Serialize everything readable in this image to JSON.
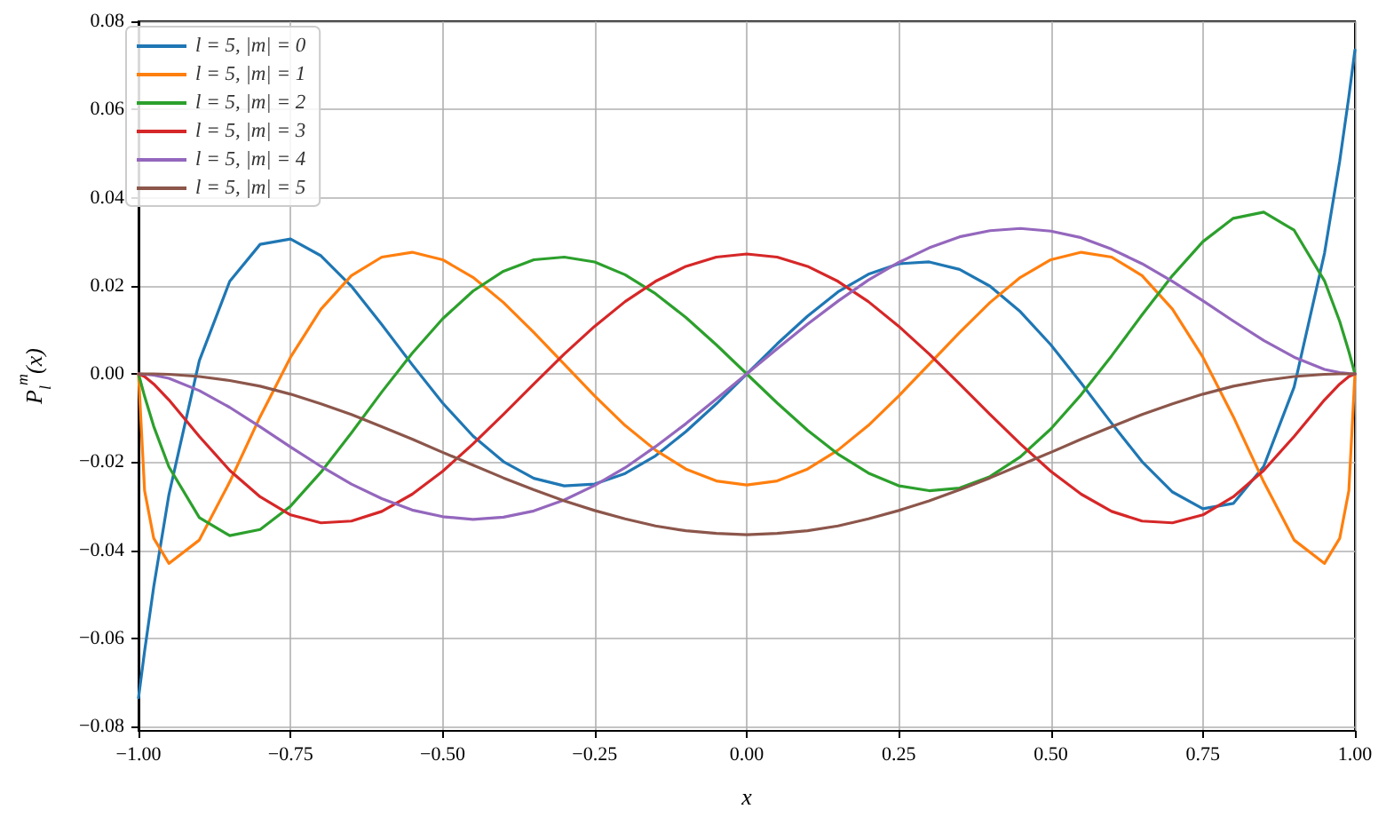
{
  "chart_data": {
    "type": "line",
    "xlabel": "x",
    "ylabel": "P$_{l}$$^{m}$(x)",
    "x": [
      -1,
      -0.99,
      -0.975,
      -0.95,
      -0.9,
      -0.85,
      -0.8,
      -0.75,
      -0.7,
      -0.65,
      -0.6,
      -0.55,
      -0.5,
      -0.45,
      -0.4,
      -0.35,
      -0.3,
      -0.25,
      -0.2,
      -0.15,
      -0.1,
      -0.05,
      0,
      0.05,
      0.1,
      0.15,
      0.2,
      0.25,
      0.3,
      0.35,
      0.4,
      0.45,
      0.5,
      0.55,
      0.6,
      0.65,
      0.7,
      0.75,
      0.8,
      0.85,
      0.9,
      0.95,
      0.975,
      0.99,
      1
    ],
    "series": [
      {
        "name": "l = 5, |m| = 0",
        "color": "#1f77b4",
        "values": [
          -0.0735,
          -0.0629,
          -0.0483,
          -0.0274,
          0.003,
          0.021,
          0.0294,
          0.0306,
          0.0268,
          0.0199,
          0.0112,
          0.0021,
          -0.0066,
          -0.0141,
          -0.0199,
          -0.0237,
          -0.0254,
          -0.025,
          -0.0226,
          -0.0186,
          -0.0131,
          -0.0068,
          0,
          0.0068,
          0.0131,
          0.0186,
          0.0226,
          0.025,
          0.0254,
          0.0237,
          0.0199,
          0.0141,
          0.0066,
          -0.0021,
          -0.0112,
          -0.0199,
          -0.0268,
          -0.0306,
          -0.0294,
          -0.021,
          -0.003,
          0.0274,
          0.0483,
          0.0629,
          0.0735
        ]
      },
      {
        "name": "l = 5, |m| = 1",
        "color": "#ff7f0e",
        "values": [
          0,
          -0.0265,
          -0.0373,
          -0.043,
          -0.0377,
          -0.0245,
          -0.0097,
          0.0038,
          0.0147,
          0.0223,
          0.0265,
          0.0276,
          0.0259,
          0.0219,
          0.0162,
          0.0094,
          0.0022,
          -0.005,
          -0.0117,
          -0.0173,
          -0.0216,
          -0.0243,
          -0.0252,
          -0.0243,
          -0.0216,
          -0.0173,
          -0.0117,
          -0.005,
          0.0022,
          0.0094,
          0.0162,
          0.0219,
          0.0259,
          0.0276,
          0.0265,
          0.0223,
          0.0147,
          0.0038,
          -0.0097,
          -0.0245,
          -0.0377,
          -0.043,
          -0.0373,
          -0.0265,
          0
        ]
      },
      {
        "name": "l = 5, |m| = 2",
        "color": "#2ca02c",
        "values": [
          0,
          -0.0051,
          -0.0119,
          -0.0211,
          -0.0326,
          -0.0367,
          -0.0353,
          -0.03,
          -0.0223,
          -0.0134,
          -0.0041,
          0.0047,
          0.0125,
          0.0188,
          0.0233,
          0.0259,
          0.0265,
          0.0254,
          0.0225,
          0.0182,
          0.0128,
          0.0066,
          0,
          -0.0066,
          -0.0128,
          -0.0182,
          -0.0225,
          -0.0254,
          -0.0265,
          -0.0259,
          -0.0233,
          -0.0188,
          -0.0125,
          -0.0047,
          0.0041,
          0.0134,
          0.0223,
          0.03,
          0.0353,
          0.0367,
          0.0326,
          0.0211,
          0.0119,
          0.0051,
          0
        ]
      },
      {
        "name": "l = 5, |m| = 3",
        "color": "#d62728",
        "values": [
          0,
          -0.0006,
          -0.0023,
          -0.0059,
          -0.0142,
          -0.0219,
          -0.0279,
          -0.032,
          -0.0338,
          -0.0334,
          -0.0312,
          -0.0273,
          -0.0221,
          -0.0159,
          -0.0092,
          -0.0023,
          0.0045,
          0.0108,
          0.0164,
          0.021,
          0.0244,
          0.0265,
          0.0272,
          0.0265,
          0.0244,
          0.021,
          0.0164,
          0.0108,
          0.0045,
          -0.0023,
          -0.0092,
          -0.0159,
          -0.0221,
          -0.0273,
          -0.0312,
          -0.0334,
          -0.0338,
          -0.032,
          -0.0279,
          -0.0219,
          -0.0142,
          -0.0059,
          -0.0023,
          -0.0006,
          0
        ]
      },
      {
        "name": "l = 5, |m| = 4",
        "color": "#9467bd",
        "values": [
          0,
          -0.0001,
          -0.0003,
          -0.001,
          -0.0038,
          -0.0076,
          -0.012,
          -0.0166,
          -0.021,
          -0.025,
          -0.0283,
          -0.0309,
          -0.0324,
          -0.033,
          -0.0325,
          -0.0311,
          -0.0286,
          -0.0253,
          -0.0213,
          -0.0165,
          -0.0113,
          -0.0057,
          0,
          0.0057,
          0.0113,
          0.0165,
          0.0213,
          0.0253,
          0.0286,
          0.0311,
          0.0325,
          0.033,
          0.0324,
          0.0309,
          0.0283,
          0.025,
          0.021,
          0.0166,
          0.012,
          0.0076,
          0.0038,
          0.001,
          0.0003,
          0.0001,
          0
        ]
      },
      {
        "name": "l = 5, |m| = 5",
        "color": "#8c564b",
        "values": [
          0,
          0,
          0,
          -0.0001,
          -0.0006,
          -0.0015,
          -0.0028,
          -0.0046,
          -0.0068,
          -0.0092,
          -0.012,
          -0.0148,
          -0.0178,
          -0.0207,
          -0.0236,
          -0.0263,
          -0.0288,
          -0.031,
          -0.0329,
          -0.0345,
          -0.0356,
          -0.0362,
          -0.0365,
          -0.0362,
          -0.0356,
          -0.0345,
          -0.0329,
          -0.031,
          -0.0288,
          -0.0263,
          -0.0236,
          -0.0207,
          -0.0178,
          -0.0148,
          -0.012,
          -0.0092,
          -0.0068,
          -0.0046,
          -0.0028,
          -0.0015,
          -0.0006,
          -0.0001,
          0,
          0,
          0
        ]
      }
    ],
    "xlim": [
      -1,
      1
    ],
    "xticks": [
      {
        "value": -1,
        "label": "−1.00"
      },
      {
        "value": -0.75,
        "label": "−0.75"
      },
      {
        "value": -0.5,
        "label": "−0.50"
      },
      {
        "value": -0.25,
        "label": "−0.25"
      },
      {
        "value": 0,
        "label": "0.00"
      },
      {
        "value": 0.25,
        "label": "0.25"
      },
      {
        "value": 0.5,
        "label": "0.50"
      },
      {
        "value": 0.75,
        "label": "0.75"
      },
      {
        "value": 1,
        "label": "1.00"
      }
    ],
    "ylim": [
      -0.081,
      0.08
    ],
    "yticks": [
      {
        "value": -0.08,
        "label": "−0.08"
      },
      {
        "value": -0.06,
        "label": "−0.06"
      },
      {
        "value": -0.04,
        "label": "−0.04"
      },
      {
        "value": -0.02,
        "label": "−0.02"
      },
      {
        "value": 0,
        "label": "0.00"
      },
      {
        "value": 0.02,
        "label": "0.02"
      },
      {
        "value": 0.04,
        "label": "0.04"
      },
      {
        "value": 0.06,
        "label": "0.06"
      },
      {
        "value": 0.08,
        "label": "0.08"
      }
    ],
    "grid": true,
    "legend": "top left",
    "marker": "none",
    "line_style": "solid"
  }
}
